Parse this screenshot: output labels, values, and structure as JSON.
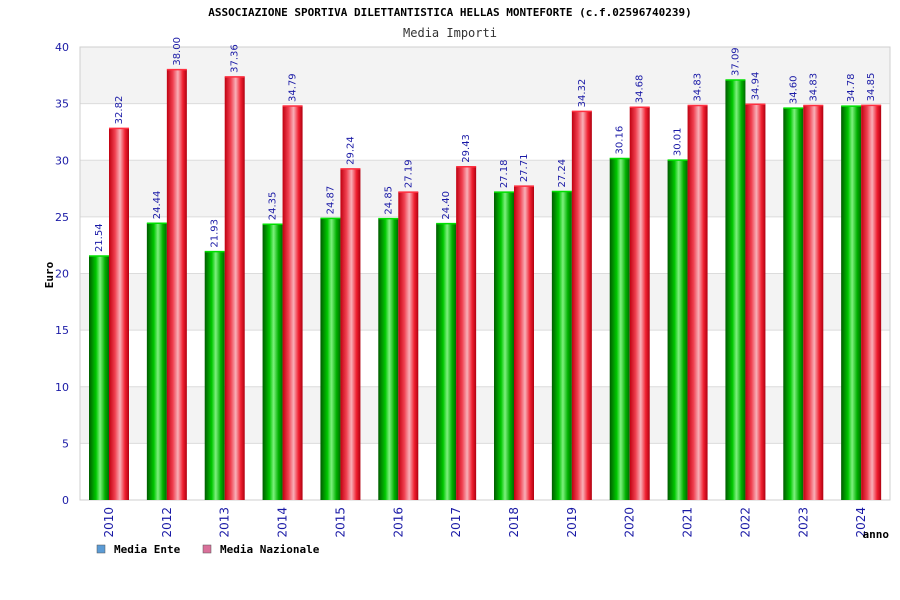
{
  "chart_data": {
    "type": "bar",
    "title": "ASSOCIAZIONE SPORTIVA DILETTANTISTICA HELLAS MONTEFORTE (c.f.02596740239)",
    "subtitle": "Media Importi",
    "xlabel": "anno",
    "ylabel": "Euro",
    "ylim": [
      0,
      40
    ],
    "yticks": [
      0,
      5,
      10,
      15,
      20,
      25,
      30,
      35,
      40
    ],
    "grid": true,
    "legend_position": "bottom-left",
    "categories": [
      "2010",
      "2012",
      "2013",
      "2014",
      "2015",
      "2016",
      "2017",
      "2018",
      "2019",
      "2020",
      "2021",
      "2022",
      "2023",
      "2024"
    ],
    "series": [
      {
        "name": "Media Ente",
        "color": "#00a000",
        "legend_color": "#5b9bd5",
        "values": [
          21.54,
          24.44,
          21.93,
          24.35,
          24.87,
          24.85,
          24.4,
          27.18,
          27.24,
          30.16,
          30.01,
          37.09,
          34.6,
          34.78
        ],
        "labels": [
          "21.54",
          "24.44",
          "21.93",
          "24.35",
          "24.87",
          "24.85",
          "24.40",
          "27.18",
          "27.24",
          "30.16",
          "30.01",
          "37.09",
          "34.60",
          "34.78"
        ]
      },
      {
        "name": "Media Nazionale",
        "color": "#e8101a",
        "legend_color": "#d9709a",
        "values": [
          32.82,
          38.0,
          37.36,
          34.79,
          29.24,
          27.19,
          29.43,
          27.71,
          34.32,
          34.68,
          34.83,
          34.94,
          34.83,
          34.85
        ],
        "labels": [
          "32.82",
          "38.00",
          "37.36",
          "34.79",
          "29.24",
          "27.19",
          "29.43",
          "27.71",
          "34.32",
          "34.68",
          "34.83",
          "34.94",
          "34.83",
          "34.85"
        ]
      }
    ]
  }
}
